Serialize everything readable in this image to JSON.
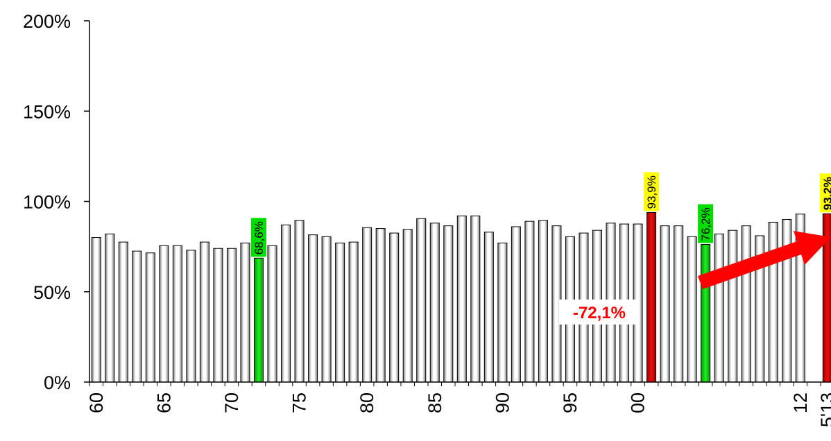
{
  "chart_data": {
    "type": "bar",
    "title": "",
    "xlabel": "",
    "ylabel": "",
    "ylim": [
      0,
      2.0
    ],
    "y_ticks": [
      {
        "value": 0,
        "label": "0%"
      },
      {
        "value": 0.5,
        "label": "50%"
      },
      {
        "value": 1.0,
        "label": "100%"
      },
      {
        "value": 1.5,
        "label": "150%"
      },
      {
        "value": 2.0,
        "label": "200%"
      }
    ],
    "categories": [
      "1960",
      "1961",
      "1962",
      "1963",
      "1964",
      "1965",
      "1966",
      "1967",
      "1968",
      "1969",
      "1970",
      "1971",
      "1972",
      "1973",
      "1974",
      "1975",
      "1976",
      "1977",
      "1978",
      "1979",
      "1980",
      "1981",
      "1982",
      "1983",
      "1984",
      "1985",
      "1986",
      "1987",
      "1988",
      "1989",
      "1990",
      "1991",
      "1992",
      "1993",
      "1994",
      "1995",
      "1996",
      "1997",
      "1998",
      "1999",
      "2000",
      "2001",
      "2002",
      "2003",
      "2004",
      "2005",
      "2006",
      "2007",
      "2008",
      "2009",
      "2010",
      "2011",
      "2012",
      "2013",
      "5'13"
    ],
    "x_tick_labels": {
      "0": "60",
      "5": "65",
      "10": "70",
      "15": "75",
      "20": "80",
      "25": "85",
      "30": "90",
      "35": "95",
      "40": "00",
      "52": "12",
      "54": "5'13"
    },
    "values": [
      0.8,
      0.82,
      0.775,
      0.725,
      0.715,
      0.755,
      0.755,
      0.73,
      0.775,
      0.74,
      0.74,
      0.77,
      0.686,
      0.755,
      0.87,
      0.895,
      0.815,
      0.805,
      0.77,
      0.775,
      0.855,
      0.85,
      0.825,
      0.845,
      0.905,
      0.88,
      0.865,
      0.92,
      0.92,
      0.83,
      0.77,
      0.86,
      0.89,
      0.895,
      0.865,
      0.805,
      0.825,
      0.84,
      0.88,
      0.875,
      0.875,
      0.939,
      0.865,
      0.865,
      0.805,
      0.762,
      0.82,
      0.84,
      0.865,
      0.81,
      0.885,
      0.9,
      0.93,
      0.0,
      0.932
    ],
    "colors": {
      "default": "#ffffff",
      "low": "#00dd00",
      "high": "#dd0000",
      "label_bg": "#ffff00",
      "label_bg_low": "#00dd00",
      "arrow": "#ff0000"
    },
    "highlights": [
      {
        "index": 12,
        "color": "low",
        "label": "68,6%",
        "label_bg": "label_bg_low"
      },
      {
        "index": 41,
        "color": "high",
        "label": "93,9%",
        "label_bg": "label_bg"
      },
      {
        "index": 45,
        "color": "low",
        "label": "76,2%",
        "label_bg": "label_bg_low"
      },
      {
        "index": 54,
        "color": "high",
        "label": "93.2%",
        "label_bg": "label_bg",
        "bold": true
      }
    ],
    "annotation": {
      "text": "-72,1%"
    },
    "grid": false,
    "legend": "none"
  }
}
